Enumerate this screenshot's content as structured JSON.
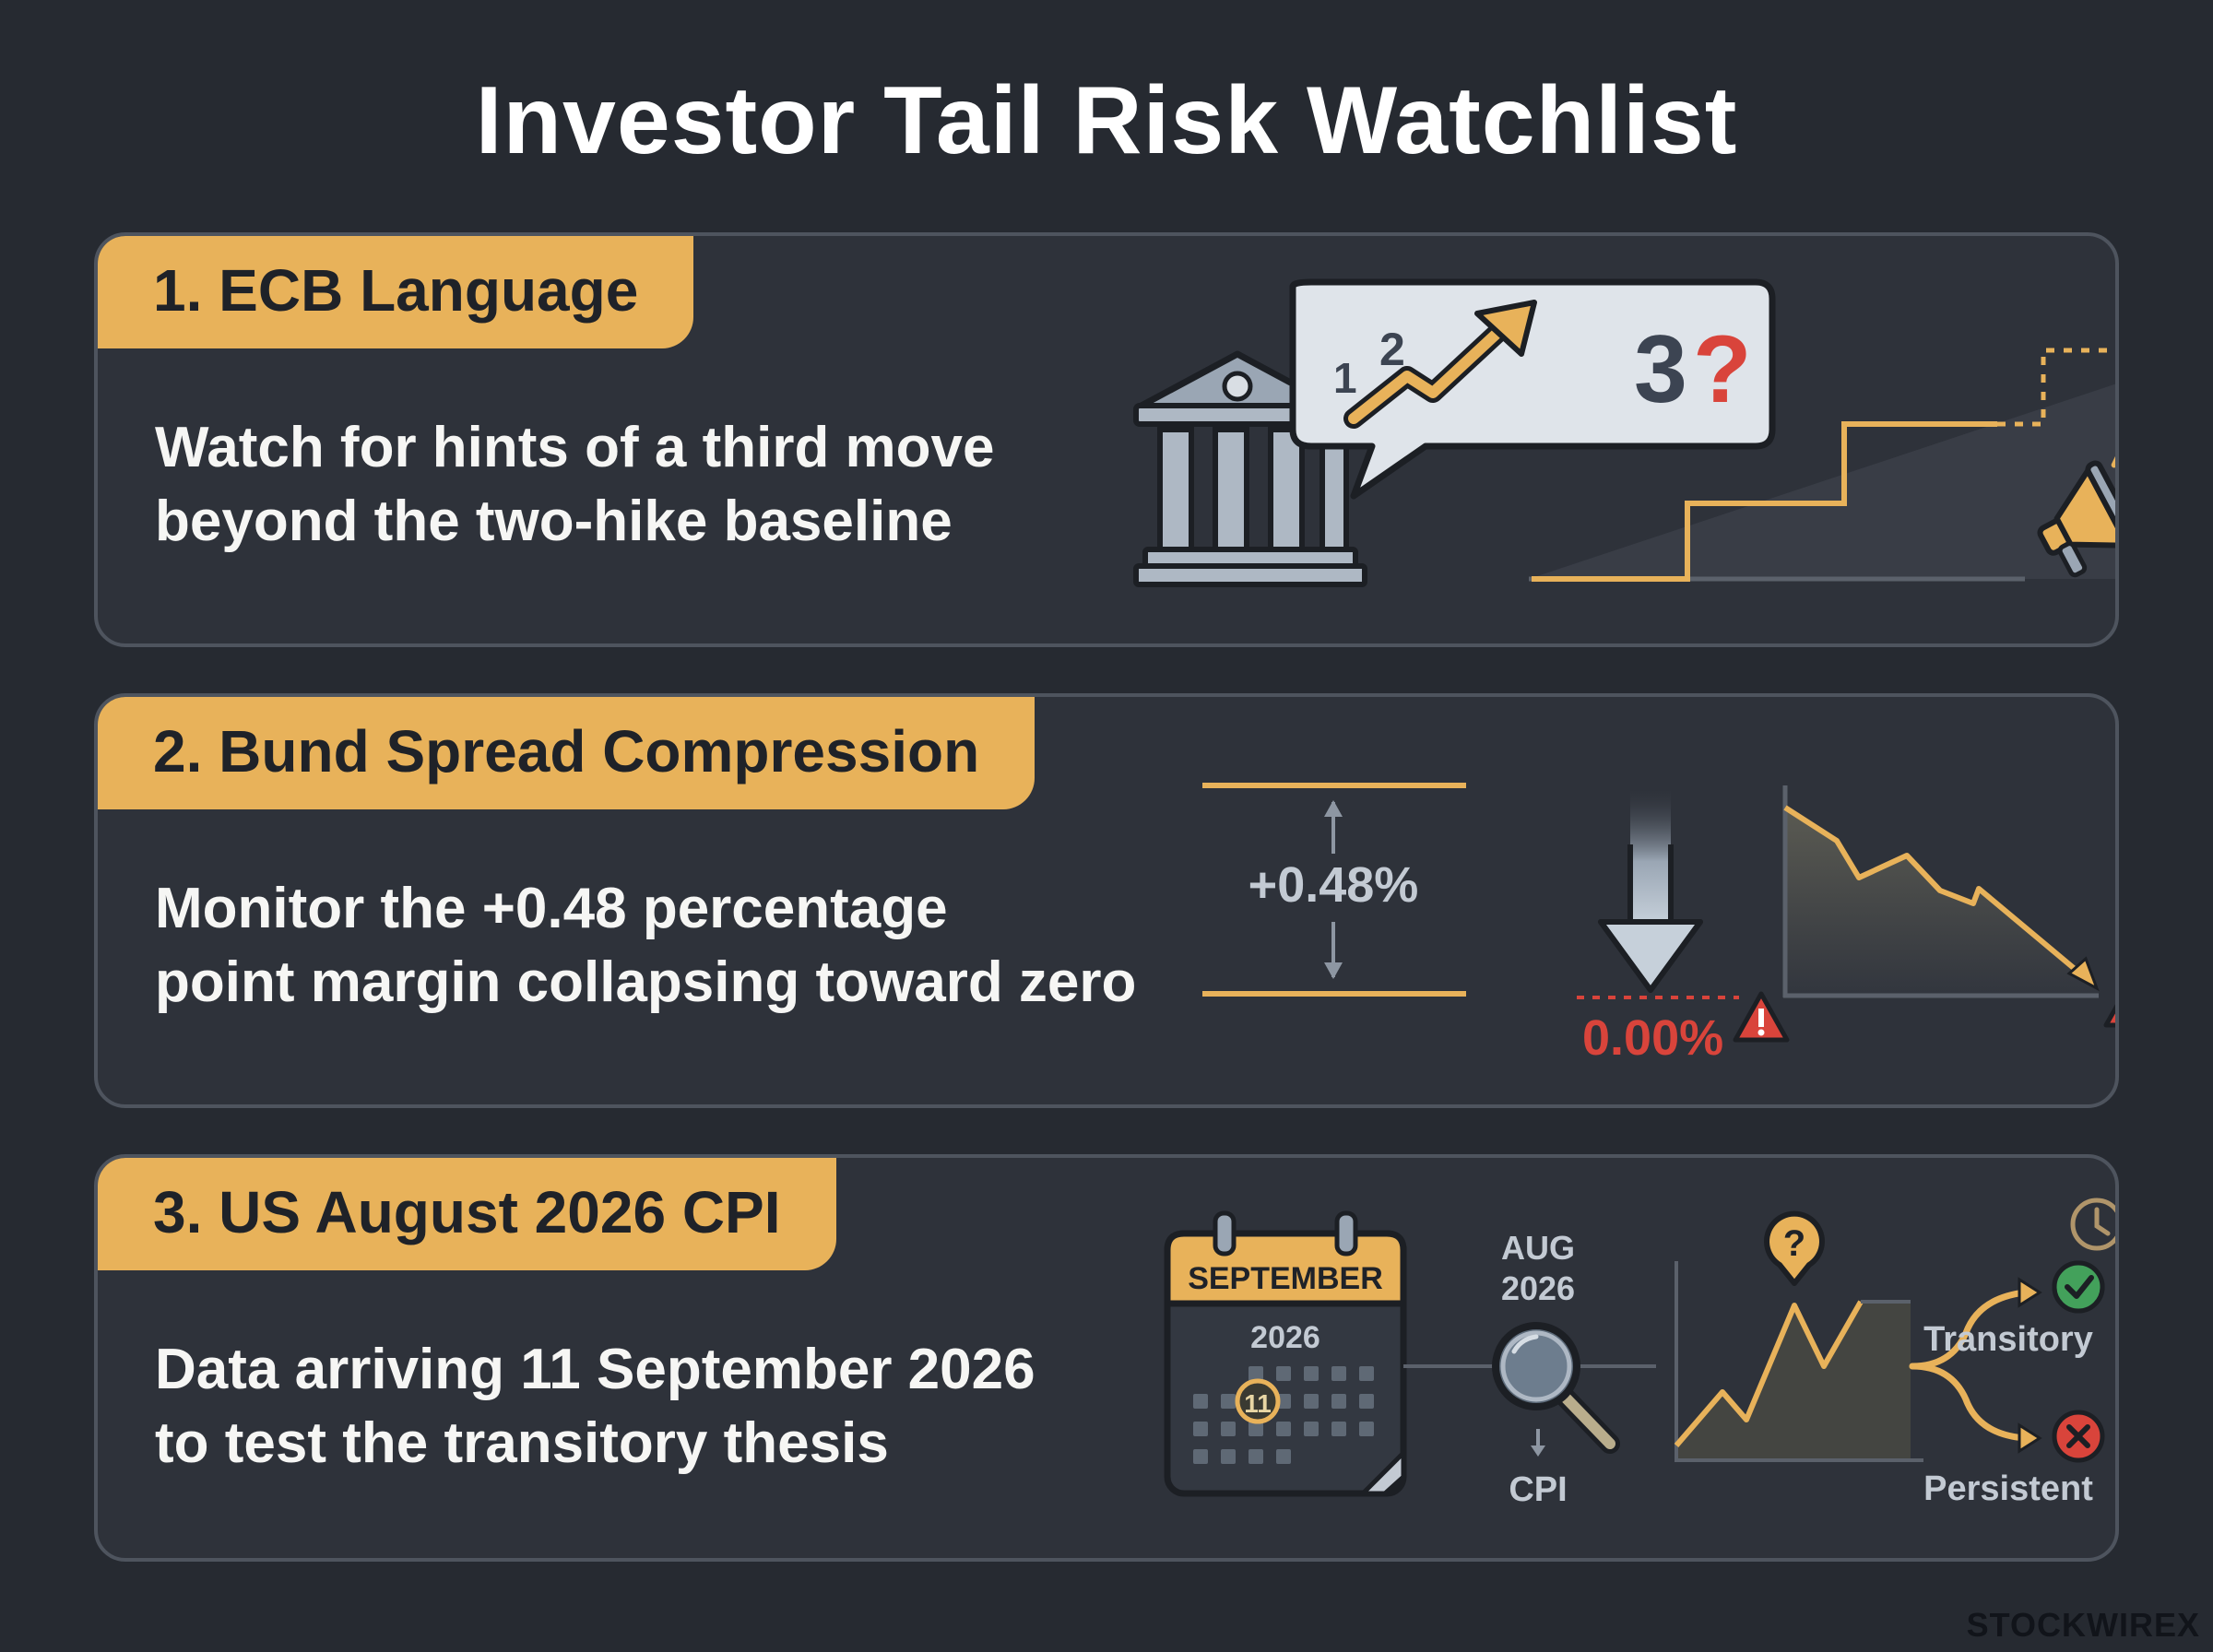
{
  "title": "Investor Tail Risk Watchlist",
  "colors": {
    "background": "#262a31",
    "card": "#2e323a",
    "card_border": "#4e545e",
    "accent_gold": "#e8b25a",
    "alert_red": "#d9443b",
    "steel": "#9aa6b4",
    "success_green": "#43a15b"
  },
  "cards": [
    {
      "tab_label": "1. ECB Language",
      "body_lines": [
        "Watch for hints of a third move",
        "beyond the two-hike baseline"
      ],
      "illustration": {
        "icons": [
          "central-bank-icon",
          "speech-bubble-icon",
          "trend-up-arrow-icon",
          "staircase-chart-icon",
          "megaphone-icon"
        ],
        "bubble_digits": [
          "1",
          "2",
          "3",
          "?"
        ]
      }
    },
    {
      "tab_label": "2. Bund Spread Compression",
      "body_lines": [
        "Monitor the +0.48 percentage",
        "point margin collapsing toward zero"
      ],
      "illustration": {
        "spread_label": "+0.48%",
        "zero_label": "0.00%",
        "icons": [
          "double-arrow-icon",
          "down-arrow-icon",
          "warning-icon",
          "declining-line-chart-icon"
        ]
      }
    },
    {
      "tab_label": "3. US August 2026 CPI",
      "body_lines": [
        "Data arriving 11 September 2026",
        "to test the transitory thesis"
      ],
      "illustration": {
        "calendar_month": "SEPTEMBER",
        "calendar_year": "2026",
        "calendar_day": "11",
        "data_month": "AUG",
        "data_year": "2026",
        "data_label": "CPI",
        "question_mark": "?",
        "outcomes": [
          {
            "label": "Transitory",
            "icon": "check-icon"
          },
          {
            "label": "Persistent",
            "icon": "cross-icon"
          }
        ],
        "icons": [
          "calendar-icon",
          "magnifier-icon",
          "clock-icon",
          "question-pin-icon"
        ]
      }
    }
  ],
  "watermark": "STOCKWIREX"
}
